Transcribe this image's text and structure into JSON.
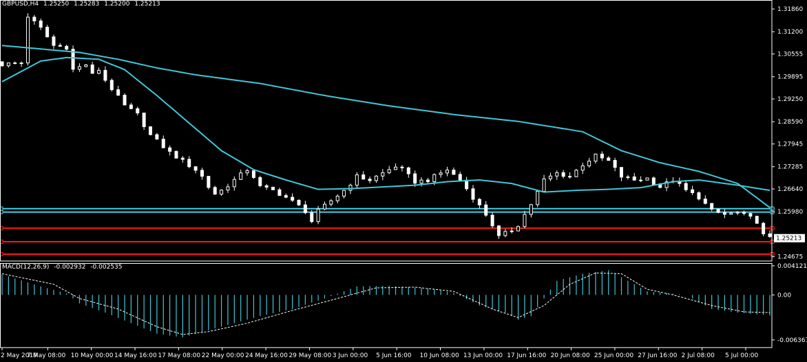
{
  "symbol": "GBPUSD,H4",
  "ohlc": {
    "open": "1.25250",
    "high": "1.25283",
    "low": "1.25200",
    "close": "1.25213"
  },
  "current_price": "1.25213",
  "macd_label": "MACD(12,26,9)",
  "macd_values": [
    "-0.002932",
    "-0.002535"
  ],
  "colors": {
    "background": "#000000",
    "frame": "#ffffff",
    "candle": "#ffffff",
    "ma": "#40c8d8",
    "hline_cyan": "#40d0e8",
    "hline_red": "#ff1a1a",
    "histogram": "#40c8d8",
    "signal": "#ffffff",
    "price_box": "#ffffff"
  },
  "chart_data": [
    {
      "type": "candlestick",
      "title": "GBPUSD,H4",
      "y_ticks": [
        "1.31860",
        "1.31200",
        "1.30555",
        "1.29895",
        "1.29250",
        "1.28590",
        "1.27945",
        "1.27285",
        "1.26640",
        "1.25980",
        "1.25213",
        "1.24675"
      ],
      "ylim": [
        1.2455,
        1.3212
      ],
      "x_ticks": [
        "2 May 2019",
        "7 May 08:00",
        "10 May 00:00",
        "14 May 16:00",
        "17 May 08:00",
        "22 May 00:00",
        "24 May 16:00",
        "29 May 08:00",
        "3 Jun 00:00",
        "5 Jun 16:00",
        "10 Jun 08:00",
        "13 Jun 00:00",
        "17 Jun 16:00",
        "20 Jun 08:00",
        "25 Jun 00:00",
        "27 Jun 16:00",
        "2 Jul 08:00",
        "5 Jul 00:00"
      ],
      "close_path": [
        [
          0,
          1.3025
        ],
        [
          3,
          1.303
        ],
        [
          4,
          1.3165
        ],
        [
          6,
          1.313
        ],
        [
          8,
          1.308
        ],
        [
          10,
          1.3075
        ],
        [
          11,
          1.301
        ],
        [
          13,
          1.3025
        ],
        [
          14,
          1.2995
        ],
        [
          15,
          1.301
        ],
        [
          16,
          1.298
        ],
        [
          18,
          1.293
        ],
        [
          19,
          1.2905
        ],
        [
          21,
          1.288
        ],
        [
          23,
          1.282
        ],
        [
          26,
          1.277
        ],
        [
          28,
          1.2745
        ],
        [
          30,
          1.272
        ],
        [
          31,
          1.27
        ],
        [
          32,
          1.267
        ],
        [
          33,
          1.265
        ],
        [
          34,
          1.266
        ],
        [
          36,
          1.269
        ],
        [
          38,
          1.272
        ],
        [
          39,
          1.27
        ],
        [
          40,
          1.267
        ],
        [
          42,
          1.266
        ],
        [
          44,
          1.264
        ],
        [
          46,
          1.2615
        ],
        [
          47,
          1.26
        ],
        [
          48,
          1.257
        ],
        [
          49,
          1.26
        ],
        [
          51,
          1.263
        ],
        [
          53,
          1.266
        ],
        [
          55,
          1.27
        ],
        [
          57,
          1.269
        ],
        [
          59,
          1.271
        ],
        [
          61,
          1.273
        ],
        [
          62,
          1.272
        ],
        [
          64,
          1.2685
        ],
        [
          66,
          1.269
        ],
        [
          68,
          1.271
        ],
        [
          69,
          1.272
        ],
        [
          71,
          1.269
        ],
        [
          73,
          1.264
        ],
        [
          75,
          1.259
        ],
        [
          76,
          1.256
        ],
        [
          77,
          1.2525
        ],
        [
          79,
          1.2545
        ],
        [
          80,
          1.256
        ],
        [
          82,
          1.262
        ],
        [
          84,
          1.269
        ],
        [
          86,
          1.271
        ],
        [
          88,
          1.27
        ],
        [
          90,
          1.2735
        ],
        [
          92,
          1.276
        ],
        [
          94,
          1.2745
        ],
        [
          96,
          1.27
        ],
        [
          98,
          1.269
        ],
        [
          100,
          1.2695
        ],
        [
          102,
          1.267
        ],
        [
          104,
          1.269
        ],
        [
          106,
          1.266
        ],
        [
          108,
          1.264
        ],
        [
          110,
          1.26
        ],
        [
          112,
          1.259
        ],
        [
          114,
          1.2595
        ],
        [
          116,
          1.258
        ],
        [
          117,
          1.257
        ],
        [
          118,
          1.253
        ],
        [
          119,
          1.2521
        ]
      ],
      "ma_fast": [
        [
          0,
          1.2975
        ],
        [
          3,
          1.3005
        ],
        [
          6,
          1.3035
        ],
        [
          10,
          1.3045
        ],
        [
          15,
          1.304
        ],
        [
          19,
          1.301
        ],
        [
          24,
          1.2935
        ],
        [
          29,
          1.2855
        ],
        [
          34,
          1.2775
        ],
        [
          39,
          1.272
        ],
        [
          44,
          1.269
        ],
        [
          49,
          1.2663
        ],
        [
          54,
          1.2665
        ],
        [
          59,
          1.267
        ],
        [
          64,
          1.2675
        ],
        [
          69,
          1.2685
        ],
        [
          74,
          1.269
        ],
        [
          79,
          1.268
        ],
        [
          84,
          1.2655
        ],
        [
          89,
          1.266
        ],
        [
          94,
          1.2663
        ],
        [
          99,
          1.2668
        ],
        [
          104,
          1.2685
        ],
        [
          108,
          1.269
        ],
        [
          114,
          1.2675
        ],
        [
          119,
          1.266
        ]
      ],
      "ma_slow": [
        [
          0,
          1.308
        ],
        [
          6,
          1.307
        ],
        [
          12,
          1.306
        ],
        [
          18,
          1.304
        ],
        [
          24,
          1.3015
        ],
        [
          30,
          1.2995
        ],
        [
          40,
          1.297
        ],
        [
          50,
          1.2935
        ],
        [
          60,
          1.2905
        ],
        [
          70,
          1.288
        ],
        [
          80,
          1.286
        ],
        [
          90,
          1.283
        ],
        [
          96,
          1.2775
        ],
        [
          102,
          1.274
        ],
        [
          108,
          1.2715
        ],
        [
          114,
          1.268
        ],
        [
          119,
          1.261
        ]
      ],
      "horizontal_levels": [
        {
          "price": 1.2607,
          "color": "cyan"
        },
        {
          "price": 1.2597,
          "color": "cyan"
        },
        {
          "price": 1.255,
          "color": "red"
        },
        {
          "price": 1.2511,
          "color": "red"
        },
        {
          "price": 1.2475,
          "color": "red"
        }
      ]
    },
    {
      "type": "bar",
      "title": "MACD(12,26,9)",
      "y_ticks": [
        "0.004121",
        "0.00",
        "-0.006367"
      ],
      "ylim": [
        -0.00745,
        0.0045
      ],
      "histogram": [
        [
          0,
          0.0029
        ],
        [
          6,
          0.0012
        ],
        [
          10,
          0.0002
        ],
        [
          12,
          -0.0012
        ],
        [
          16,
          -0.0025
        ],
        [
          20,
          -0.004
        ],
        [
          24,
          -0.0055
        ],
        [
          28,
          -0.006
        ],
        [
          32,
          -0.005
        ],
        [
          36,
          -0.004
        ],
        [
          40,
          -0.003
        ],
        [
          45,
          -0.002
        ],
        [
          50,
          -0.0005
        ],
        [
          55,
          0.0012
        ],
        [
          60,
          0.0013
        ],
        [
          66,
          0.0009
        ],
        [
          70,
          0.0003
        ],
        [
          74,
          -0.0015
        ],
        [
          78,
          -0.0025
        ],
        [
          80,
          -0.0035
        ],
        [
          82,
          -0.003
        ],
        [
          84,
          -0.0005
        ],
        [
          86,
          0.002
        ],
        [
          90,
          0.003
        ],
        [
          94,
          0.0035
        ],
        [
          96,
          0.0025
        ],
        [
          100,
          0.0005
        ],
        [
          106,
          0.0
        ],
        [
          110,
          -0.002
        ],
        [
          114,
          -0.0025
        ],
        [
          119,
          -0.0029
        ]
      ],
      "signal": [
        [
          0,
          0.003
        ],
        [
          8,
          0.0015
        ],
        [
          12,
          -0.0005
        ],
        [
          18,
          -0.002
        ],
        [
          24,
          -0.0045
        ],
        [
          28,
          -0.0056
        ],
        [
          32,
          -0.0052
        ],
        [
          38,
          -0.004
        ],
        [
          45,
          -0.0022
        ],
        [
          52,
          -0.0005
        ],
        [
          58,
          0.001
        ],
        [
          64,
          0.0011
        ],
        [
          70,
          0.0005
        ],
        [
          76,
          -0.002
        ],
        [
          80,
          -0.0032
        ],
        [
          84,
          -0.0015
        ],
        [
          88,
          0.0015
        ],
        [
          92,
          0.0031
        ],
        [
          96,
          0.003
        ],
        [
          100,
          0.0008
        ],
        [
          104,
          0.0
        ],
        [
          110,
          -0.0015
        ],
        [
          115,
          -0.0024
        ],
        [
          119,
          -0.0025
        ]
      ]
    }
  ]
}
